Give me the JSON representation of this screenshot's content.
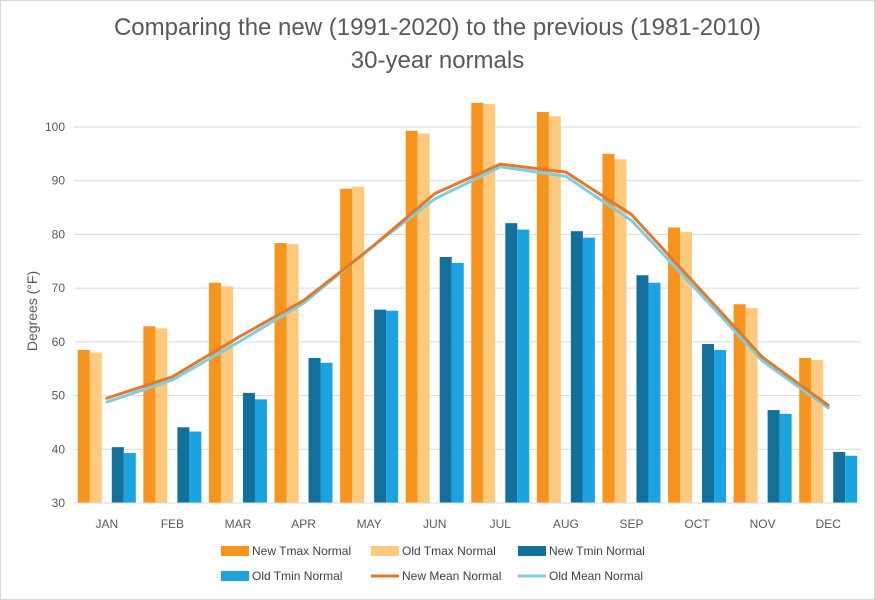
{
  "colors": {
    "new_tmax": "#f7941d",
    "old_tmax": "#fcc97d",
    "new_tmin": "#136f9c",
    "old_tmin": "#1ba2e0",
    "new_mean": "#e07a2e",
    "old_mean": "#7fcde0",
    "grid": "#d9d9d9",
    "text": "#595959"
  },
  "chart_data": {
    "type": "bar",
    "title": "Comparing the new (1991-2020) to the previous (1981-2010)",
    "subtitle": "30-year normals",
    "xlabel": "",
    "ylabel": "Degrees (°F)",
    "ylim": [
      30,
      100
    ],
    "yticks": [
      30,
      40,
      50,
      60,
      70,
      80,
      90,
      100
    ],
    "grid": true,
    "legend_position": "bottom",
    "categories": [
      "JAN",
      "FEB",
      "MAR",
      "APR",
      "MAY",
      "JUN",
      "JUL",
      "AUG",
      "SEP",
      "OCT",
      "NOV",
      "DEC"
    ],
    "series": [
      {
        "name": "New Tmax Normal",
        "kind": "bar",
        "color_key": "new_tmax",
        "values": [
          58.5,
          62.9,
          71.0,
          78.4,
          88.5,
          99.3,
          104.5,
          102.8,
          95.0,
          81.3,
          67.0,
          57.0
        ]
      },
      {
        "name": "Old Tmax Normal",
        "kind": "bar",
        "color_key": "old_tmax",
        "values": [
          58.0,
          62.5,
          70.3,
          78.2,
          88.9,
          98.8,
          104.3,
          102.0,
          94.0,
          80.5,
          66.3,
          56.6
        ]
      },
      {
        "name": "New Tmin Normal",
        "kind": "bar",
        "color_key": "new_tmin",
        "values": [
          40.4,
          44.1,
          50.5,
          57.0,
          66.0,
          75.8,
          82.1,
          80.6,
          72.4,
          59.6,
          47.3,
          39.5
        ]
      },
      {
        "name": "Old Tmin Normal",
        "kind": "bar",
        "color_key": "old_tmin",
        "values": [
          39.3,
          43.3,
          49.3,
          56.1,
          65.8,
          74.7,
          80.9,
          79.4,
          71.0,
          58.5,
          46.6,
          38.8
        ]
      },
      {
        "name": "New Mean Normal",
        "kind": "line",
        "color_key": "new_mean",
        "values": [
          49.5,
          53.5,
          60.8,
          67.7,
          77.2,
          87.6,
          93.1,
          91.6,
          83.7,
          70.4,
          57.1,
          48.2
        ]
      },
      {
        "name": "Old Mean Normal",
        "kind": "line",
        "color_key": "old_mean",
        "values": [
          48.8,
          52.9,
          59.9,
          67.2,
          77.3,
          86.6,
          92.6,
          90.8,
          82.6,
          69.6,
          56.4,
          47.7
        ]
      }
    ]
  }
}
